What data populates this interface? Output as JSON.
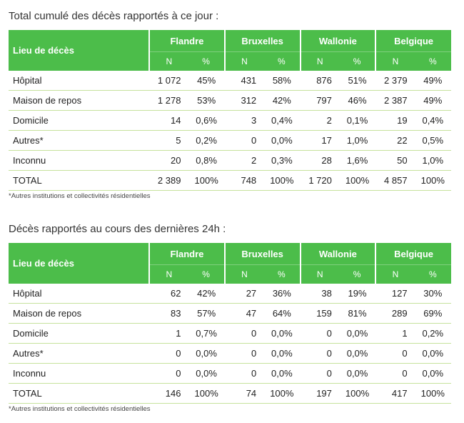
{
  "tables": [
    {
      "title": "Total cumulé des décès rapportés à ce jour :",
      "col_header": "Lieu de décès",
      "regions": [
        "Flandre",
        "Bruxelles",
        "Wallonie",
        "Belgique"
      ],
      "subheaders": [
        "N",
        "%"
      ],
      "rows": [
        {
          "label": "Hôpital",
          "values": [
            "1 072",
            "45%",
            "431",
            "58%",
            "876",
            "51%",
            "2 379",
            "49%"
          ]
        },
        {
          "label": "Maison de repos",
          "values": [
            "1 278",
            "53%",
            "312",
            "42%",
            "797",
            "46%",
            "2 387",
            "49%"
          ]
        },
        {
          "label": "Domicile",
          "values": [
            "14",
            "0,6%",
            "3",
            "0,4%",
            "2",
            "0,1%",
            "19",
            "0,4%"
          ]
        },
        {
          "label": "Autres*",
          "values": [
            "5",
            "0,2%",
            "0",
            "0,0%",
            "17",
            "1,0%",
            "22",
            "0,5%"
          ]
        },
        {
          "label": "Inconnu",
          "values": [
            "20",
            "0,8%",
            "2",
            "0,3%",
            "28",
            "1,6%",
            "50",
            "1,0%"
          ]
        },
        {
          "label": "TOTAL",
          "values": [
            "2 389",
            "100%",
            "748",
            "100%",
            "1 720",
            "100%",
            "4 857",
            "100%"
          ]
        }
      ],
      "footnote": "*Autres institutions et collectivités résidentielles"
    },
    {
      "title": "Décès rapportés au cours des dernières 24h :",
      "col_header": "Lieu de décès",
      "regions": [
        "Flandre",
        "Bruxelles",
        "Wallonie",
        "Belgique"
      ],
      "subheaders": [
        "N",
        "%"
      ],
      "rows": [
        {
          "label": "Hôpital",
          "values": [
            "62",
            "42%",
            "27",
            "36%",
            "38",
            "19%",
            "127",
            "30%"
          ]
        },
        {
          "label": "Maison de repos",
          "values": [
            "83",
            "57%",
            "47",
            "64%",
            "159",
            "81%",
            "289",
            "69%"
          ]
        },
        {
          "label": "Domicile",
          "values": [
            "1",
            "0,7%",
            "0",
            "0,0%",
            "0",
            "0,0%",
            "1",
            "0,2%"
          ]
        },
        {
          "label": "Autres*",
          "values": [
            "0",
            "0,0%",
            "0",
            "0,0%",
            "0",
            "0,0%",
            "0",
            "0,0%"
          ]
        },
        {
          "label": "Inconnu",
          "values": [
            "0",
            "0,0%",
            "0",
            "0,0%",
            "0",
            "0,0%",
            "0",
            "0,0%"
          ]
        },
        {
          "label": "TOTAL",
          "values": [
            "146",
            "100%",
            "74",
            "100%",
            "197",
            "100%",
            "417",
            "100%"
          ]
        }
      ],
      "footnote": "*Autres institutions et collectivités résidentielles"
    }
  ]
}
